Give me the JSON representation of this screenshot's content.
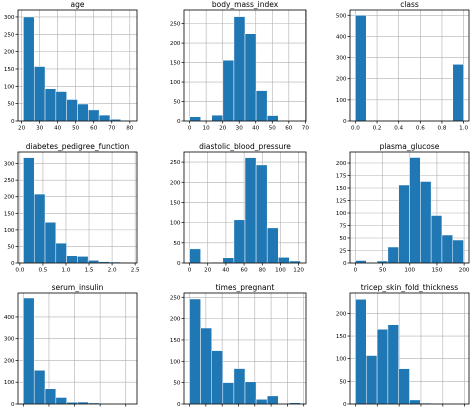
{
  "style": {
    "bar_color": "#1f77b4",
    "bar_edge": "#ffffff",
    "grid": true
  },
  "chart_data": [
    {
      "type": "bar",
      "subtype": "histogram",
      "title": "age",
      "bins": [
        [
          21,
          27
        ],
        [
          27,
          33
        ],
        [
          33,
          39
        ],
        [
          39,
          45
        ],
        [
          45,
          51
        ],
        [
          51,
          57
        ],
        [
          57,
          63
        ],
        [
          63,
          69
        ],
        [
          69,
          75
        ],
        [
          75,
          81
        ]
      ],
      "values": [
        300,
        157,
        93,
        85,
        62,
        49,
        32,
        17,
        5,
        2
      ],
      "xlim": [
        18,
        84
      ],
      "ylim": [
        0,
        320
      ],
      "xticks": [
        20,
        30,
        40,
        50,
        60,
        70,
        80
      ],
      "yticks": [
        0,
        50,
        100,
        150,
        200,
        250,
        300
      ]
    },
    {
      "type": "bar",
      "subtype": "histogram",
      "title": "body_mass_index",
      "bins": [
        [
          0,
          6.7
        ],
        [
          6.7,
          13.4
        ],
        [
          13.4,
          20.1
        ],
        [
          20.1,
          26.8
        ],
        [
          26.8,
          33.5
        ],
        [
          33.5,
          40.2
        ],
        [
          40.2,
          46.9
        ],
        [
          46.9,
          53.6
        ],
        [
          53.6,
          60.3
        ],
        [
          60.3,
          67.1
        ]
      ],
      "values": [
        11,
        0,
        15,
        156,
        268,
        224,
        78,
        14,
        1,
        1
      ],
      "xlim": [
        -3.4,
        70.4
      ],
      "ylim": [
        0,
        285
      ],
      "xticks": [
        0,
        10,
        20,
        30,
        40,
        50,
        60,
        70
      ],
      "yticks": [
        0,
        50,
        100,
        150,
        200,
        250
      ]
    },
    {
      "type": "bar",
      "subtype": "histogram",
      "title": "class",
      "bins": [
        [
          0,
          0.1
        ],
        [
          0.1,
          0.2
        ],
        [
          0.2,
          0.3
        ],
        [
          0.3,
          0.4
        ],
        [
          0.4,
          0.5
        ],
        [
          0.5,
          0.6
        ],
        [
          0.6,
          0.7
        ],
        [
          0.7,
          0.8
        ],
        [
          0.8,
          0.9
        ],
        [
          0.9,
          1.0
        ]
      ],
      "values": [
        500,
        0,
        0,
        0,
        0,
        0,
        0,
        0,
        0,
        268
      ],
      "xlim": [
        -0.05,
        1.05
      ],
      "ylim": [
        0,
        525
      ],
      "xticks": [
        0.0,
        0.2,
        0.4,
        0.6,
        0.8,
        1.0
      ],
      "yticks": [
        0,
        100,
        200,
        300,
        400,
        500
      ],
      "xtick_decimals": 1
    },
    {
      "type": "bar",
      "subtype": "histogram",
      "title": "diabetes_pedigree_function",
      "bins": [
        [
          0.078,
          0.312
        ],
        [
          0.312,
          0.546
        ],
        [
          0.546,
          0.78
        ],
        [
          0.78,
          1.013
        ],
        [
          1.013,
          1.247
        ],
        [
          1.247,
          1.481
        ],
        [
          1.481,
          1.715
        ],
        [
          1.715,
          1.949
        ],
        [
          1.949,
          2.183
        ],
        [
          2.183,
          2.42
        ]
      ],
      "values": [
        318,
        208,
        123,
        60,
        22,
        20,
        8,
        4,
        3,
        2
      ],
      "xlim": [
        -0.04,
        2.54
      ],
      "ylim": [
        0,
        335
      ],
      "xticks": [
        0.0,
        0.5,
        1.0,
        1.5,
        2.0,
        2.5
      ],
      "yticks": [
        0,
        50,
        100,
        150,
        200,
        250,
        300
      ],
      "xtick_decimals": 1
    },
    {
      "type": "bar",
      "subtype": "histogram",
      "title": "diastolic_blood_pressure",
      "bins": [
        [
          0,
          12.2
        ],
        [
          12.2,
          24.4
        ],
        [
          24.4,
          36.6
        ],
        [
          36.6,
          48.8
        ],
        [
          48.8,
          61.0
        ],
        [
          61.0,
          73.2
        ],
        [
          73.2,
          85.4
        ],
        [
          85.4,
          97.6
        ],
        [
          97.6,
          109.8
        ],
        [
          109.8,
          122
        ]
      ],
      "values": [
        35,
        1,
        2,
        13,
        107,
        261,
        243,
        87,
        14,
        5
      ],
      "xlim": [
        -6.1,
        128.1
      ],
      "ylim": [
        0,
        275
      ],
      "xticks": [
        0,
        20,
        40,
        60,
        80,
        100,
        120
      ],
      "yticks": [
        0,
        50,
        100,
        150,
        200,
        250
      ]
    },
    {
      "type": "bar",
      "subtype": "histogram",
      "title": "plasma_glucose",
      "bins": [
        [
          0,
          19.9
        ],
        [
          19.9,
          39.8
        ],
        [
          39.8,
          59.7
        ],
        [
          59.7,
          79.6
        ],
        [
          79.6,
          99.5
        ],
        [
          99.5,
          119.4
        ],
        [
          119.4,
          139.3
        ],
        [
          139.3,
          159.2
        ],
        [
          159.2,
          179.1
        ],
        [
          179.1,
          199
        ]
      ],
      "values": [
        5,
        0,
        4,
        32,
        156,
        211,
        163,
        95,
        56,
        46
      ],
      "xlim": [
        -10,
        209
      ],
      "ylim": [
        0,
        222
      ],
      "xticks": [
        0,
        50,
        100,
        150,
        200
      ],
      "yticks": [
        0,
        25,
        50,
        75,
        100,
        125,
        150,
        175,
        200
      ]
    },
    {
      "type": "bar",
      "subtype": "histogram",
      "title": "serum_insulin",
      "bins": [
        [
          0,
          84.6
        ],
        [
          84.6,
          169.2
        ],
        [
          169.2,
          253.8
        ],
        [
          253.8,
          338.4
        ],
        [
          338.4,
          423
        ],
        [
          423,
          507.6
        ],
        [
          507.6,
          592.2
        ],
        [
          592.2,
          676.8
        ],
        [
          676.8,
          761.4
        ],
        [
          761.4,
          846
        ]
      ],
      "values": [
        487,
        155,
        70,
        30,
        8,
        9,
        5,
        1,
        2,
        1
      ],
      "xlim": [
        -42,
        888
      ],
      "ylim": [
        0,
        510
      ],
      "xticks": [
        0,
        200,
        400,
        600,
        800
      ],
      "yticks": [
        0,
        100,
        200,
        300,
        400
      ]
    },
    {
      "type": "bar",
      "subtype": "histogram",
      "title": "times_pregnant",
      "bins": [
        [
          0,
          1.7
        ],
        [
          1.7,
          3.4
        ],
        [
          3.4,
          5.1
        ],
        [
          5.1,
          6.8
        ],
        [
          6.8,
          8.5
        ],
        [
          8.5,
          10.2
        ],
        [
          10.2,
          11.9
        ],
        [
          11.9,
          13.6
        ],
        [
          13.6,
          15.3
        ],
        [
          15.3,
          17
        ]
      ],
      "values": [
        246,
        178,
        125,
        50,
        83,
        52,
        11,
        19,
        0,
        3
      ],
      "xlim": [
        -0.85,
        17.85
      ],
      "ylim": [
        0,
        260
      ],
      "xticks": [
        0.0,
        2.5,
        5.0,
        7.5,
        10.0,
        12.5,
        15.0,
        17.5
      ],
      "yticks": [
        0,
        50,
        100,
        150,
        200,
        250
      ],
      "xtick_decimals": 1
    },
    {
      "type": "bar",
      "subtype": "histogram",
      "title": "tricep_skin_fold_thickness",
      "bins": [
        [
          0,
          9.9
        ],
        [
          9.9,
          19.8
        ],
        [
          19.8,
          29.7
        ],
        [
          29.7,
          39.6
        ],
        [
          39.6,
          49.5
        ],
        [
          49.5,
          59.4
        ],
        [
          59.4,
          69.3
        ],
        [
          69.3,
          79.2
        ],
        [
          79.2,
          89.1
        ],
        [
          89.1,
          99
        ]
      ],
      "values": [
        231,
        107,
        165,
        175,
        78,
        9,
        2,
        0,
        0,
        1
      ],
      "xlim": [
        -5,
        104
      ],
      "ylim": [
        0,
        245
      ],
      "xticks": [
        0,
        20,
        40,
        60,
        80,
        100
      ],
      "yticks": [
        0,
        50,
        100,
        150,
        200
      ]
    }
  ]
}
